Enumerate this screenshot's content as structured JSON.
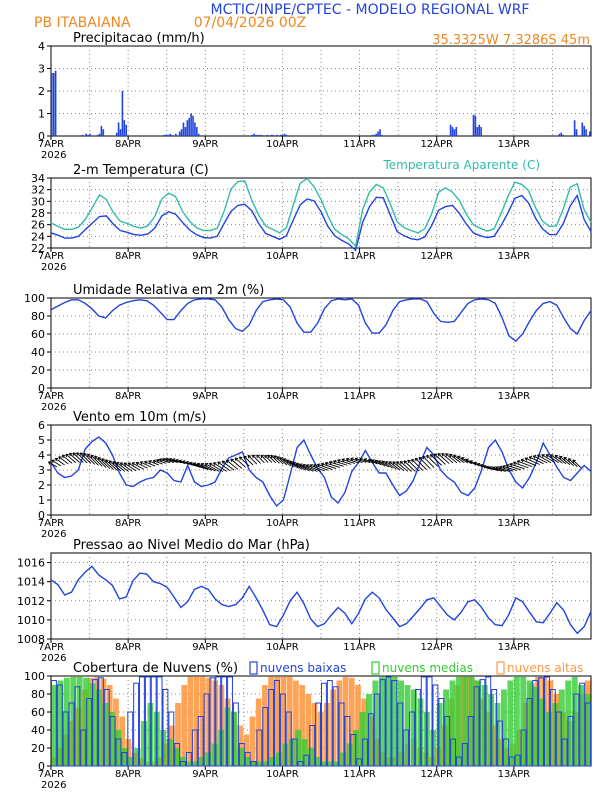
{
  "header": {
    "title": "MCTIC/INPE/CPTEC - MODELO REGIONAL WRF",
    "location": "PB ITABAIANA",
    "run": "07/04/2026 00Z",
    "coords": "35.3325W 7.3286S 45m"
  },
  "colors": {
    "blue": "#2244dd",
    "cyan": "#33bbaa",
    "green": "#33cc33",
    "orange": "#ff9944",
    "title_blue": "#2244dd",
    "title_orange": "#ee8822"
  },
  "chart_data": [
    {
      "type": "bar",
      "id": "precip",
      "title": "Precipitacao (mm/h)",
      "ylim": [
        0,
        4
      ],
      "yticks": [
        "0",
        "1",
        "2",
        "3",
        "4"
      ],
      "xticks": [
        "7APR",
        "8APR",
        "9APR",
        "10APR",
        "11APR",
        "12APR",
        "13APR"
      ],
      "x_year": "2026",
      "hours_start": 0,
      "series": [
        {
          "name": "precip",
          "values": [
            2.8,
            2.8,
            2.9,
            0,
            0,
            0,
            0,
            0,
            0,
            0,
            0,
            0,
            0,
            0,
            0,
            0,
            0.05,
            0,
            0.1,
            0.05,
            0.1,
            0,
            0,
            0,
            0.05,
            0.1,
            0.45,
            0.3,
            0,
            0,
            0,
            0,
            0,
            0,
            0.15,
            0.6,
            0.3,
            2.0,
            0.7,
            0.5,
            0,
            0,
            0,
            0,
            0,
            0,
            0,
            0,
            0,
            0,
            0,
            0,
            0,
            0,
            0,
            0,
            0,
            0,
            0,
            0.05,
            0.05,
            0.05,
            0.1,
            0.05,
            0,
            0.1,
            0,
            0.2,
            0.3,
            0.6,
            0.4,
            0.7,
            0.8,
            1.0,
            0.9,
            0.6,
            0.4,
            0.1,
            0,
            0,
            0,
            0,
            0,
            0,
            0,
            0,
            0,
            0,
            0,
            0,
            0,
            0,
            0,
            0,
            0,
            0,
            0,
            0,
            0,
            0,
            0,
            0,
            0,
            0,
            0,
            0.05,
            0.1,
            0.05,
            0.05,
            0.05,
            0.05,
            0,
            0,
            0.05,
            0,
            0.05,
            0.05,
            0,
            0.05,
            0,
            0.05,
            0.05,
            0.1,
            0.05,
            0,
            0,
            0,
            0,
            0,
            0,
            0,
            0,
            0,
            0,
            0,
            0,
            0,
            0,
            0,
            0,
            0,
            0,
            0,
            0,
            0,
            0,
            0,
            0,
            0,
            0,
            0,
            0,
            0,
            0,
            0,
            0,
            0,
            0,
            0,
            0,
            0,
            0,
            0,
            0,
            0,
            0,
            0,
            0,
            0.05,
            0.05,
            0.1,
            0.2,
            0.3,
            0.05,
            0,
            0,
            0,
            0,
            0,
            0,
            0,
            0,
            0,
            0,
            0,
            0,
            0,
            0,
            0,
            0,
            0,
            0,
            0,
            0,
            0,
            0,
            0,
            0,
            0,
            0,
            0,
            0,
            0,
            0,
            0,
            0,
            0,
            0,
            0,
            0.5,
            0.4,
            0.3,
            0.4,
            0,
            0,
            0,
            0,
            0,
            0,
            0,
            0,
            0.95,
            0.9,
            0.4,
            0.5,
            0.4,
            0,
            0,
            0,
            0,
            0,
            0,
            0,
            0,
            0,
            0,
            0,
            0,
            0,
            0,
            0,
            0,
            0,
            0,
            0,
            0,
            0,
            0,
            0,
            0,
            0,
            0,
            0,
            0,
            0,
            0,
            0,
            0,
            0,
            0,
            0,
            0,
            0,
            0,
            0,
            0,
            0.1,
            0.15,
            0.05,
            0,
            0,
            0,
            0,
            0,
            0.7,
            0.3,
            0,
            0,
            0.6,
            0.45,
            0.3,
            0,
            0.2
          ]
        }
      ]
    },
    {
      "type": "line",
      "id": "temp",
      "title": "2-m Temperatura (C)",
      "legend": "Temperatura Aparente (C)",
      "ylim": [
        22,
        34
      ],
      "yticks": [
        "22",
        "24",
        "26",
        "28",
        "30",
        "32",
        "34"
      ],
      "xticks": [
        "7APR",
        "8APR",
        "9APR",
        "10APR",
        "11APR",
        "12APR",
        "13APR"
      ],
      "x_year": "2026",
      "series": [
        {
          "name": "temperature",
          "color": "blue",
          "values": [
            24.6,
            24.2,
            23.7,
            23.7,
            24.0,
            25.2,
            26.3,
            27.4,
            27.5,
            26.1,
            25.0,
            24.7,
            24.3,
            24.2,
            24.4,
            25.4,
            27.5,
            28.2,
            27.8,
            26.4,
            25.1,
            24.3,
            23.8,
            23.7,
            24.0,
            26.2,
            28.3,
            29.3,
            29.5,
            28.4,
            26.2,
            24.5,
            24.0,
            23.5,
            24.1,
            26.8,
            29.4,
            30.4,
            30.1,
            28.2,
            25.7,
            24.1,
            23.3,
            22.7,
            21.6,
            26.3,
            29.1,
            30.7,
            30.6,
            27.7,
            24.8,
            24.1,
            23.6,
            23.4,
            23.9,
            25.9,
            28.5,
            29.1,
            29.3,
            27.9,
            26.1,
            24.6,
            24.1,
            23.8,
            24.0,
            25.8,
            28.0,
            30.5,
            31.0,
            29.7,
            27.1,
            25.3,
            24.3,
            24.3,
            26.2,
            29.2,
            31.0,
            26.9,
            24.8
          ]
        },
        {
          "name": "apparent",
          "color": "cyan",
          "values": [
            26.3,
            25.7,
            25.2,
            25.2,
            25.6,
            27.0,
            29.0,
            31.1,
            30.3,
            28.1,
            26.6,
            26.2,
            25.7,
            25.4,
            25.8,
            27.4,
            30.4,
            31.4,
            30.8,
            28.3,
            26.6,
            25.5,
            25.0,
            25.0,
            25.4,
            28.3,
            32.1,
            33.4,
            33.5,
            30.2,
            27.6,
            25.8,
            25.2,
            24.6,
            25.5,
            29.4,
            33.1,
            33.9,
            32.5,
            30.3,
            27.5,
            25.2,
            24.3,
            23.6,
            22.3,
            28.5,
            31.6,
            32.9,
            32.3,
            29.6,
            26.5,
            25.5,
            25.0,
            24.6,
            25.3,
            27.9,
            31.6,
            32.3,
            31.6,
            30.1,
            27.8,
            26.0,
            25.4,
            24.9,
            25.3,
            27.9,
            30.8,
            33.3,
            32.9,
            31.8,
            28.9,
            26.6,
            25.7,
            25.8,
            28.7,
            32.4,
            33.0,
            28.6,
            26.4
          ]
        }
      ]
    },
    {
      "type": "line",
      "id": "rh",
      "title": "Umidade Relativa em 2m (%)",
      "ylim": [
        0,
        100
      ],
      "yticks": [
        "0",
        "20",
        "40",
        "60",
        "80",
        "100"
      ],
      "xticks": [
        "7APR",
        "8APR",
        "9APR",
        "10APR",
        "11APR",
        "12APR",
        "13APR"
      ],
      "x_year": "2026",
      "series": [
        {
          "name": "rh",
          "color": "blue",
          "values": [
            87,
            91,
            95,
            98,
            98,
            94,
            88,
            80,
            78,
            86,
            92,
            95,
            97,
            98,
            97,
            92,
            84,
            76,
            76,
            86,
            94,
            98,
            99,
            99,
            98,
            90,
            76,
            66,
            63,
            70,
            86,
            96,
            98,
            99,
            98,
            90,
            72,
            62,
            62,
            72,
            88,
            97,
            99,
            98,
            99,
            92,
            72,
            61,
            61,
            70,
            86,
            96,
            98,
            99,
            99,
            96,
            83,
            74,
            73,
            74,
            84,
            94,
            98,
            99,
            98,
            94,
            78,
            58,
            52,
            60,
            74,
            86,
            94,
            96,
            92,
            78,
            66,
            60,
            75,
            86
          ]
        }
      ]
    },
    {
      "type": "line",
      "id": "wind",
      "title": "Vento em 10m (m/s)",
      "ylim": [
        0,
        6
      ],
      "yticks": [
        "0",
        "1",
        "2",
        "3",
        "4",
        "5",
        "6"
      ],
      "xticks": [
        "7APR",
        "8APR",
        "9APR",
        "10APR",
        "11APR",
        "12APR",
        "13APR"
      ],
      "x_year": "2026",
      "series": [
        {
          "name": "speed",
          "color": "blue",
          "values": [
            3.5,
            2.8,
            2.5,
            2.6,
            3.0,
            4.4,
            4.9,
            5.2,
            4.8,
            4.0,
            2.8,
            2.0,
            1.9,
            2.2,
            2.4,
            2.5,
            3.0,
            2.8,
            2.3,
            2.2,
            3.3,
            2.2,
            1.9,
            2.0,
            2.2,
            3.1,
            3.8,
            4.0,
            4.2,
            3.0,
            2.5,
            2.2,
            1.3,
            0.6,
            1.0,
            2.7,
            4.5,
            5.0,
            4.0,
            3.1,
            2.5,
            1.2,
            0.8,
            1.5,
            2.9,
            3.5,
            4.3,
            3.5,
            2.8,
            2.8,
            2.0,
            1.3,
            1.6,
            2.3,
            3.5,
            4.5,
            4.0,
            3.0,
            2.5,
            2.2,
            1.5,
            1.3,
            1.8,
            3.0,
            4.5,
            5.0,
            4.2,
            3.0,
            2.2,
            1.8,
            2.5,
            3.5,
            4.8,
            4.0,
            3.2,
            2.5,
            2.3,
            2.8,
            3.3,
            2.9
          ]
        }
      ],
      "arrows_note": "direction arrows from SE drawn along series"
    },
    {
      "type": "line",
      "id": "pressure",
      "title": "Pressao ao Nivel Medio do Mar (hPa)",
      "ylim": [
        1008,
        1017
      ],
      "yticks": [
        "1008",
        "1010",
        "1012",
        "1014",
        "1016"
      ],
      "xticks": [
        "7APR",
        "8APR",
        "9APR",
        "10APR",
        "11APR",
        "12APR",
        "13APR"
      ],
      "x_year": "2026",
      "series": [
        {
          "name": "mslp",
          "color": "blue",
          "values": [
            1014.2,
            1013.7,
            1012.6,
            1012.9,
            1014.2,
            1015.0,
            1015.6,
            1014.7,
            1014.2,
            1013.6,
            1012.2,
            1012.4,
            1014.1,
            1014.9,
            1014.8,
            1014.0,
            1013.8,
            1013.4,
            1012.4,
            1011.3,
            1011.9,
            1013.2,
            1013.5,
            1013.2,
            1012.2,
            1011.6,
            1011.4,
            1011.6,
            1012.3,
            1013.5,
            1012.3,
            1011.0,
            1009.5,
            1009.3,
            1010.5,
            1012.0,
            1012.9,
            1011.7,
            1010.1,
            1009.3,
            1009.6,
            1010.5,
            1011.3,
            1010.7,
            1009.6,
            1010.7,
            1012.2,
            1012.9,
            1012.3,
            1011.1,
            1010.2,
            1009.3,
            1009.6,
            1010.4,
            1011.2,
            1012.1,
            1012.3,
            1011.4,
            1010.5,
            1010.0,
            1010.8,
            1011.9,
            1012.1,
            1011.3,
            1010.2,
            1009.5,
            1009.4,
            1010.6,
            1012.3,
            1011.9,
            1010.8,
            1009.8,
            1009.7,
            1010.7,
            1011.8,
            1011.0,
            1009.5,
            1008.6,
            1009.3,
            1010.9
          ]
        }
      ]
    },
    {
      "type": "bar",
      "id": "clouds",
      "title": "Cobertura de Nuvens (%)",
      "ylim": [
        0,
        100
      ],
      "yticks": [
        "0",
        "20",
        "40",
        "60",
        "80",
        "100"
      ],
      "xticks": [
        "7APR",
        "8APR",
        "9APR",
        "10APR",
        "11APR",
        "12APR",
        "13APR"
      ],
      "x_year": "2026",
      "legend": [
        "nuvens baixas",
        "nuvens medias",
        "nuvens altas"
      ],
      "series": [
        {
          "name": "baixas",
          "color": "blue",
          "values": [
            95,
            90,
            60,
            70,
            88,
            40,
            75,
            96,
            98,
            85,
            55,
            30,
            15,
            60,
            92,
            99,
            99,
            99,
            99,
            85,
            60,
            25,
            5,
            15,
            40,
            55,
            80,
            98,
            99,
            99,
            99,
            70,
            25,
            15,
            5,
            40,
            65,
            85,
            95,
            80,
            60,
            30,
            5,
            12,
            45,
            70,
            92,
            95,
            88,
            70,
            55,
            35,
            8,
            30,
            58,
            80,
            96,
            99,
            95,
            70,
            40,
            60,
            85,
            99,
            99,
            90,
            75,
            55,
            30,
            10,
            25,
            55,
            88,
            96,
            99,
            85,
            50,
            30,
            10,
            12,
            40,
            75,
            95,
            98,
            99,
            85,
            60,
            30,
            55,
            80,
            92,
            70
          ]
        },
        {
          "name": "medias",
          "color": "green",
          "values": [
            90,
            95,
            98,
            99,
            99,
            98,
            92,
            85,
            70,
            60,
            40,
            20,
            10,
            20,
            50,
            70,
            60,
            40,
            30,
            20,
            10,
            5,
            5,
            10,
            15,
            25,
            40,
            65,
            60,
            20,
            10,
            5,
            5,
            5,
            10,
            15,
            25,
            30,
            40,
            30,
            20,
            10,
            5,
            5,
            5,
            15,
            25,
            40,
            60,
            80,
            95,
            99,
            99,
            99,
            95,
            90,
            85,
            75,
            60,
            40,
            70,
            85,
            95,
            99,
            99,
            99,
            95,
            90,
            80,
            70,
            85,
            95,
            99,
            99,
            95,
            88,
            75,
            60,
            70,
            85,
            95,
            99,
            90,
            80
          ]
        },
        {
          "name": "altas",
          "color": "orange",
          "values": [
            10,
            20,
            35,
            50,
            65,
            85,
            98,
            99,
            97,
            90,
            75,
            55,
            30,
            15,
            8,
            5,
            5,
            10,
            25,
            45,
            70,
            90,
            99,
            99,
            99,
            98,
            95,
            90,
            75,
            60,
            45,
            35,
            55,
            75,
            90,
            99,
            99,
            99,
            99,
            95,
            90,
            80,
            70,
            60,
            70,
            85,
            95,
            99,
            98,
            90,
            75,
            55,
            30,
            15,
            10,
            10,
            15,
            25,
            30,
            20,
            15,
            10,
            20,
            45,
            75,
            90,
            99,
            99,
            95,
            75,
            60,
            45,
            30,
            20,
            25,
            40,
            70,
            92,
            99,
            99,
            95,
            80,
            60,
            50,
            60,
            80,
            95
          ]
        }
      ]
    }
  ]
}
